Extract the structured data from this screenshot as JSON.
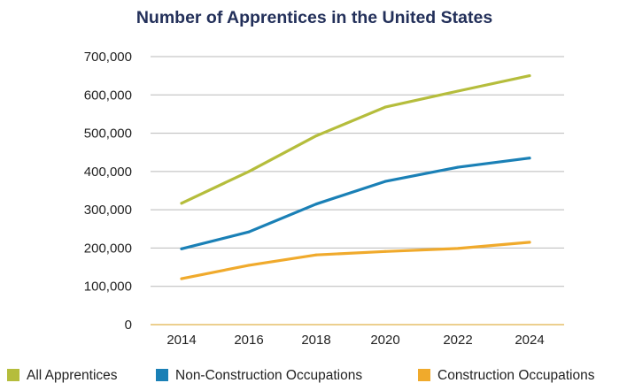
{
  "chart_data": {
    "type": "line",
    "title": "Number of Apprentices in the United States",
    "x": [
      "2014",
      "2016",
      "2018",
      "2020",
      "2022",
      "2024"
    ],
    "ylim": [
      0,
      700000
    ],
    "yticks": [
      0,
      100000,
      200000,
      300000,
      400000,
      500000,
      600000,
      700000
    ],
    "ytick_labels": [
      "0",
      "100,000",
      "200,000",
      "300,000",
      "400,000",
      "500,000",
      "600,000",
      "700,000"
    ],
    "grid": true,
    "legend_position": "bottom",
    "series": [
      {
        "name": "All Apprentices",
        "color": "#b5bd3c",
        "values": [
          317000,
          400000,
          493000,
          568000,
          610000,
          650000
        ]
      },
      {
        "name": "Non-Construction Occupations",
        "color": "#1a80b6",
        "values": [
          198000,
          242000,
          315000,
          374000,
          411000,
          435000
        ]
      },
      {
        "name": "Construction Occupations",
        "color": "#f0aa2c",
        "values": [
          120000,
          155000,
          182000,
          191000,
          199000,
          215000
        ]
      }
    ]
  }
}
